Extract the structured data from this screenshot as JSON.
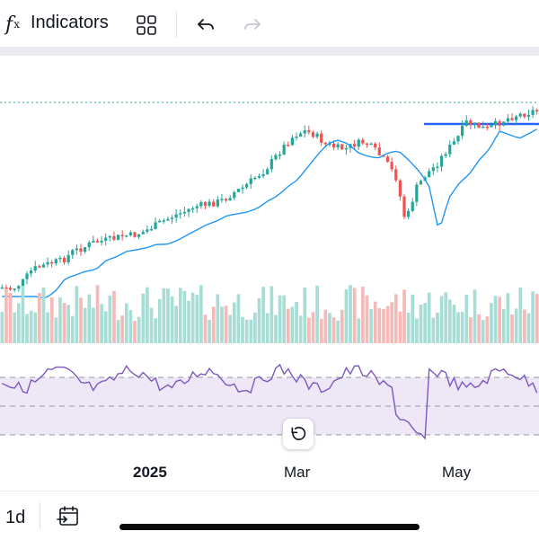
{
  "toolbar": {
    "fx_symbol": "f",
    "fx_sub": "x",
    "indicators_label": "Indicators",
    "icons": [
      "fx-icon",
      "layout-grid-icon",
      "undo-icon",
      "redo-icon"
    ]
  },
  "chart_data": {
    "type": "candlestick",
    "overlays": [
      "moving-average",
      "horizontal-line",
      "dotted-price-line"
    ],
    "xaxis_labels": [
      "2025",
      "Mar",
      "May"
    ],
    "panes": [
      "price",
      "volume",
      "rsi"
    ],
    "colors": {
      "up": "#26a69a",
      "down": "#ef5350",
      "ma": "#2196f3",
      "hline": "#2962ff",
      "rsi": "#7e57c2",
      "rsi_band": "#ede7f6"
    },
    "price_shape": [
      320,
      322,
      314,
      300,
      296,
      292,
      290,
      280,
      276,
      270,
      268,
      266,
      262,
      262,
      258,
      252,
      246,
      240,
      236,
      230,
      228,
      226,
      222,
      214,
      208,
      198,
      190,
      176,
      162,
      150,
      146,
      150,
      160,
      164,
      166,
      160,
      158,
      168,
      180,
      196,
      248,
      210,
      194,
      184,
      168,
      156,
      136,
      140,
      144,
      138,
      132,
      128,
      126,
      122
    ]
  },
  "bottom": {
    "interval": "1d",
    "icons": [
      "calendar-goto-icon",
      "reset-zoom-icon"
    ]
  }
}
